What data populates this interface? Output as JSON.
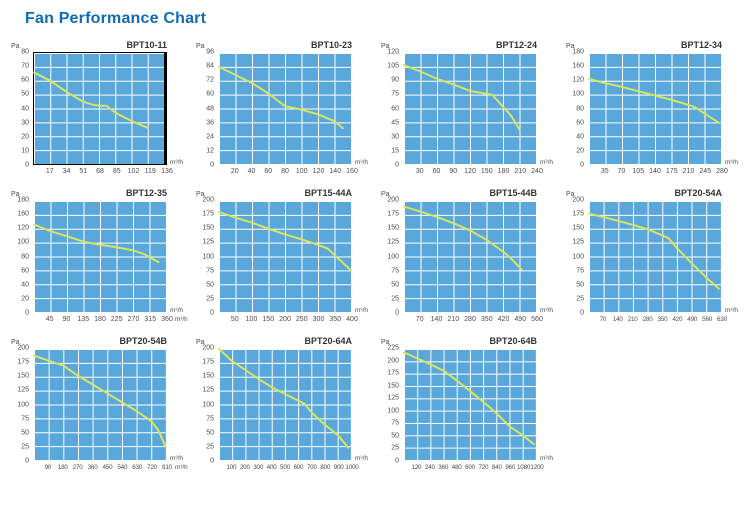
{
  "header": {
    "title": "Fan Performance Chart"
  },
  "palette": {
    "heading": "#0f6bb4",
    "plot_fill": "#5aa8db",
    "grid_line": "#ffffff",
    "curve": "#d7e45e",
    "tick_text": "#4c4c4c",
    "title_text": "#333333",
    "frame": "#000000"
  },
  "chart_data": [
    {
      "type": "line",
      "title": "BPT10-11",
      "ylabel": "Pa",
      "xlabel": "m³/h",
      "framed": true,
      "x_unit_suffix": false,
      "grid": true,
      "y_ticks": [
        80,
        70,
        60,
        50,
        40,
        30,
        20,
        10,
        0
      ],
      "x_ticks": [
        17,
        34,
        51,
        68,
        85,
        102,
        119,
        136
      ],
      "ylim": [
        0,
        80
      ],
      "xlim": [
        0,
        136
      ],
      "series": [
        {
          "name": "performance-curve",
          "points": [
            [
              0,
              66
            ],
            [
              17,
              60
            ],
            [
              34,
              52
            ],
            [
              51,
              45
            ],
            [
              60,
              43
            ],
            [
              68,
              42
            ],
            [
              76,
              42
            ],
            [
              85,
              37
            ],
            [
              102,
              31
            ],
            [
              119,
              26
            ]
          ]
        }
      ]
    },
    {
      "type": "line",
      "title": "BPT10-23",
      "ylabel": "Pa",
      "xlabel": "m³/h",
      "framed": false,
      "x_unit_suffix": false,
      "grid": true,
      "y_ticks": [
        96,
        84,
        72,
        60,
        48,
        36,
        24,
        12,
        0
      ],
      "x_ticks": [
        20,
        40,
        60,
        80,
        100,
        120,
        140,
        160
      ],
      "ylim": [
        0,
        96
      ],
      "xlim": [
        0,
        160
      ],
      "series": [
        {
          "name": "performance-curve",
          "points": [
            [
              0,
              84
            ],
            [
              20,
              77
            ],
            [
              40,
              70
            ],
            [
              60,
              61
            ],
            [
              80,
              50
            ],
            [
              100,
              47
            ],
            [
              120,
              43
            ],
            [
              140,
              37
            ],
            [
              150,
              31
            ]
          ]
        }
      ]
    },
    {
      "type": "line",
      "title": "BPT12-24",
      "ylabel": "Pa",
      "xlabel": "m³/h",
      "framed": false,
      "x_unit_suffix": false,
      "grid": true,
      "y_ticks": [
        120,
        105,
        90,
        75,
        60,
        45,
        30,
        15,
        0
      ],
      "x_ticks": [
        30,
        60,
        90,
        120,
        150,
        180,
        210,
        240
      ],
      "ylim": [
        0,
        120
      ],
      "xlim": [
        0,
        240
      ],
      "series": [
        {
          "name": "performance-curve",
          "points": [
            [
              0,
              107
            ],
            [
              30,
              100
            ],
            [
              60,
              92
            ],
            [
              90,
              86
            ],
            [
              120,
              79
            ],
            [
              150,
              76
            ],
            [
              160,
              75
            ],
            [
              180,
              62
            ],
            [
              195,
              52
            ],
            [
              210,
              37
            ]
          ]
        }
      ]
    },
    {
      "type": "line",
      "title": "BPT12-34",
      "ylabel": "Pa",
      "xlabel": "m³/h",
      "framed": false,
      "x_unit_suffix": false,
      "grid": true,
      "y_ticks": [
        180,
        160,
        120,
        100,
        80,
        60,
        40,
        20,
        0
      ],
      "x_ticks": [
        35,
        70,
        105,
        140,
        175,
        210,
        245,
        280
      ],
      "ylim": [
        0,
        180
      ],
      "xlim": [
        0,
        280
      ],
      "series": [
        {
          "name": "performance-curve",
          "points": [
            [
              0,
              138
            ],
            [
              35,
              131
            ],
            [
              70,
              125
            ],
            [
              105,
              118
            ],
            [
              140,
              111
            ],
            [
              175,
              104
            ],
            [
              210,
              96
            ],
            [
              225,
              92
            ],
            [
              245,
              82
            ],
            [
              275,
              67
            ]
          ]
        }
      ]
    },
    {
      "type": "line",
      "title": "BPT12-35",
      "ylabel": "Pa",
      "xlabel": "m³/h",
      "framed": false,
      "x_unit_suffix": true,
      "grid": true,
      "y_ticks": [
        180,
        160,
        120,
        100,
        80,
        60,
        40,
        20,
        0
      ],
      "x_ticks": [
        45,
        90,
        135,
        180,
        225,
        270,
        315,
        360
      ],
      "ylim": [
        0,
        180
      ],
      "xlim": [
        0,
        360
      ],
      "series": [
        {
          "name": "performance-curve",
          "points": [
            [
              0,
              142
            ],
            [
              45,
              131
            ],
            [
              90,
              123
            ],
            [
              135,
              114
            ],
            [
              180,
              109
            ],
            [
              225,
              105
            ],
            [
              270,
              100
            ],
            [
              300,
              94
            ],
            [
              320,
              87
            ],
            [
              340,
              81
            ]
          ]
        }
      ]
    },
    {
      "type": "line",
      "title": "BPT15-44A",
      "ylabel": "Pa",
      "xlabel": "m³/h",
      "framed": false,
      "x_unit_suffix": false,
      "grid": true,
      "y_ticks": [
        200,
        175,
        150,
        125,
        100,
        75,
        50,
        25,
        0
      ],
      "x_ticks": [
        50,
        100,
        150,
        200,
        250,
        300,
        350,
        400
      ],
      "ylim": [
        0,
        200
      ],
      "xlim": [
        0,
        400
      ],
      "series": [
        {
          "name": "performance-curve",
          "points": [
            [
              0,
              180
            ],
            [
              50,
              170
            ],
            [
              100,
              161
            ],
            [
              150,
              150
            ],
            [
              200,
              140
            ],
            [
              250,
              131
            ],
            [
              300,
              121
            ],
            [
              330,
              114
            ],
            [
              360,
              97
            ],
            [
              400,
              75
            ]
          ]
        }
      ]
    },
    {
      "type": "line",
      "title": "BPT15-44B",
      "ylabel": "Pa",
      "xlabel": "m³/h",
      "framed": false,
      "x_unit_suffix": false,
      "grid": true,
      "y_ticks": [
        200,
        175,
        150,
        125,
        100,
        75,
        50,
        25,
        0
      ],
      "x_ticks": [
        70,
        140,
        210,
        280,
        350,
        420,
        490,
        560
      ],
      "ylim": [
        0,
        200
      ],
      "xlim": [
        0,
        560
      ],
      "series": [
        {
          "name": "performance-curve",
          "points": [
            [
              0,
              190
            ],
            [
              70,
              181
            ],
            [
              140,
              171
            ],
            [
              210,
              160
            ],
            [
              280,
              147
            ],
            [
              350,
              130
            ],
            [
              420,
              109
            ],
            [
              460,
              94
            ],
            [
              500,
              76
            ]
          ]
        }
      ]
    },
    {
      "type": "line",
      "title": "BPT20-54A",
      "ylabel": "Pa",
      "xlabel": "m³/h",
      "framed": false,
      "x_unit_suffix": false,
      "grid": true,
      "y_ticks": [
        200,
        175,
        150,
        125,
        100,
        75,
        50,
        25,
        0
      ],
      "x_ticks": [
        70,
        140,
        210,
        280,
        350,
        420,
        490,
        560,
        630
      ],
      "ylim": [
        0,
        200
      ],
      "xlim": [
        0,
        630
      ],
      "series": [
        {
          "name": "performance-curve",
          "points": [
            [
              0,
              177
            ],
            [
              70,
              171
            ],
            [
              140,
              164
            ],
            [
              210,
              157
            ],
            [
              280,
              149
            ],
            [
              350,
              138
            ],
            [
              380,
              133
            ],
            [
              420,
              115
            ],
            [
              490,
              88
            ],
            [
              560,
              62
            ],
            [
              620,
              42
            ]
          ]
        }
      ]
    },
    {
      "type": "line",
      "title": "BPT20-54B",
      "ylabel": "Pa",
      "xlabel": "m³/h",
      "framed": false,
      "x_unit_suffix": true,
      "grid": true,
      "y_ticks": [
        200,
        175,
        150,
        125,
        100,
        75,
        50,
        25,
        0
      ],
      "x_ticks": [
        90,
        180,
        270,
        360,
        450,
        540,
        630,
        720,
        810
      ],
      "ylim": [
        0,
        200
      ],
      "xlim": [
        0,
        810
      ],
      "series": [
        {
          "name": "performance-curve",
          "points": [
            [
              0,
              188
            ],
            [
              90,
              179
            ],
            [
              180,
              170
            ],
            [
              270,
              152
            ],
            [
              360,
              136
            ],
            [
              450,
              120
            ],
            [
              540,
              104
            ],
            [
              630,
              88
            ],
            [
              720,
              70
            ],
            [
              760,
              55
            ],
            [
              805,
              26
            ]
          ]
        }
      ]
    },
    {
      "type": "line",
      "title": "BPT20-64A",
      "ylabel": "Pa",
      "xlabel": "m³/h",
      "framed": false,
      "x_unit_suffix": false,
      "grid": true,
      "y_ticks": [
        200,
        175,
        150,
        125,
        100,
        75,
        50,
        25,
        0
      ],
      "x_ticks": [
        100,
        200,
        300,
        400,
        500,
        600,
        700,
        800,
        900,
        1000
      ],
      "ylim": [
        0,
        200
      ],
      "xlim": [
        0,
        1000
      ],
      "series": [
        {
          "name": "performance-curve",
          "points": [
            [
              0,
              200
            ],
            [
              100,
              178
            ],
            [
              200,
              162
            ],
            [
              300,
              146
            ],
            [
              400,
              131
            ],
            [
              500,
              119
            ],
            [
              600,
              107
            ],
            [
              650,
              101
            ],
            [
              700,
              86
            ],
            [
              800,
              64
            ],
            [
              900,
              45
            ],
            [
              980,
              22
            ]
          ]
        }
      ]
    },
    {
      "type": "line",
      "title": "BPT20-64B",
      "ylabel": "Pa",
      "xlabel": "m³/h",
      "framed": false,
      "x_unit_suffix": false,
      "grid": true,
      "y_ticks": [
        225,
        200,
        175,
        150,
        125,
        100,
        75,
        50,
        25,
        0
      ],
      "x_ticks": [
        120,
        240,
        360,
        480,
        600,
        720,
        840,
        960,
        1080,
        1200
      ],
      "ylim": [
        0,
        225
      ],
      "xlim": [
        0,
        1200
      ],
      "series": [
        {
          "name": "performance-curve",
          "points": [
            [
              0,
              218
            ],
            [
              120,
              206
            ],
            [
              240,
              194
            ],
            [
              360,
              181
            ],
            [
              480,
              161
            ],
            [
              600,
              140
            ],
            [
              720,
              118
            ],
            [
              840,
              95
            ],
            [
              960,
              68
            ],
            [
              1080,
              50
            ],
            [
              1180,
              32
            ]
          ]
        }
      ]
    }
  ]
}
